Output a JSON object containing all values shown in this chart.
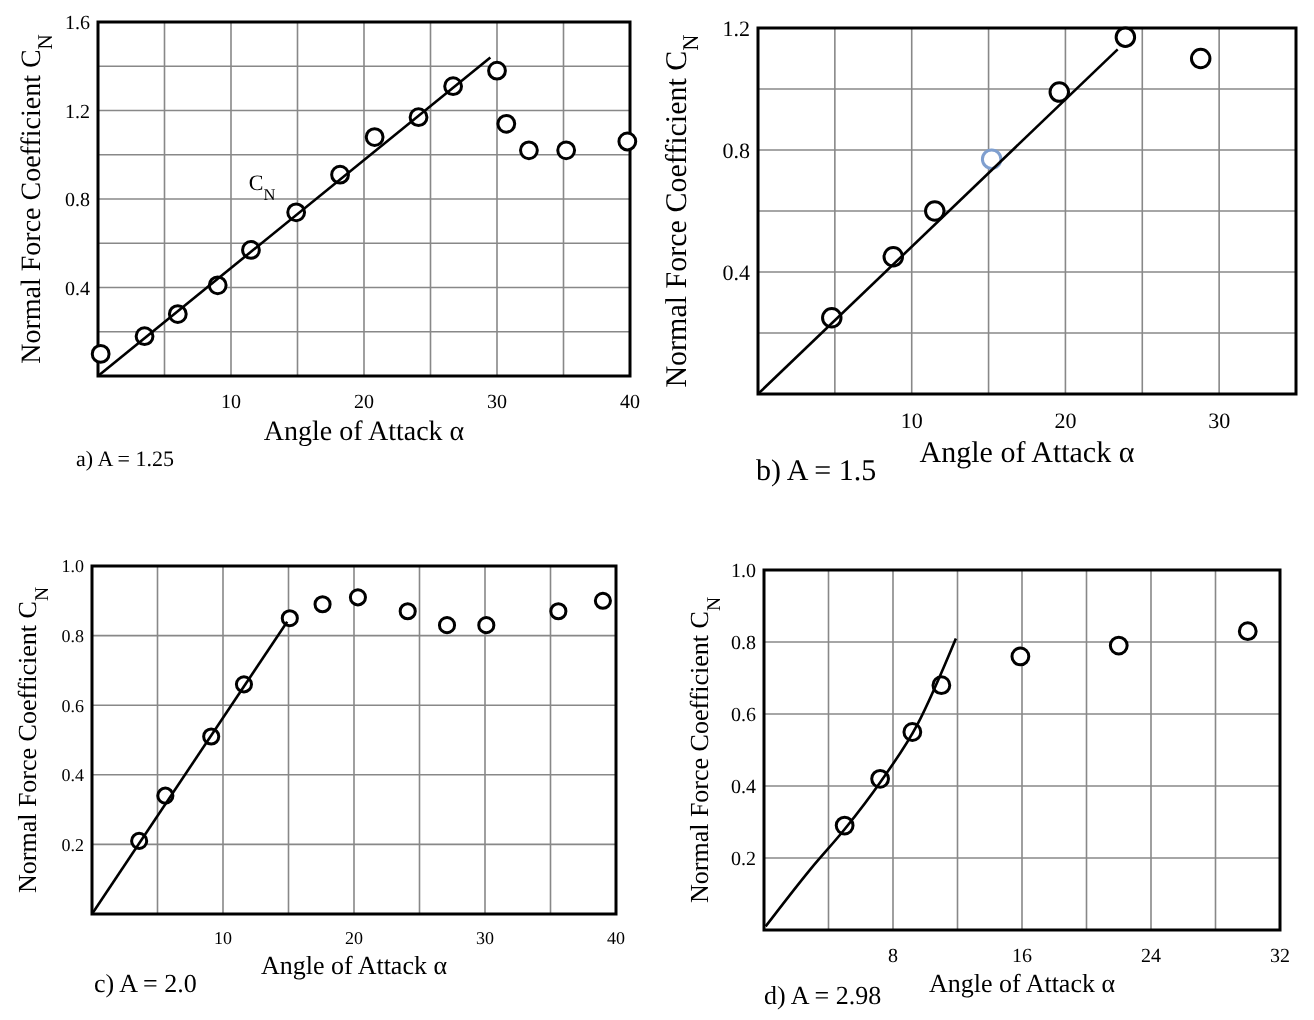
{
  "chart_data": [
    {
      "type": "scatter",
      "title": "a) A = 1.25",
      "xlabel": "Angle of Attack  α",
      "ylabel": "Normal Force Coefficient C$_{N}$",
      "xlim": [
        0,
        40
      ],
      "ylim": [
        0,
        1.6
      ],
      "xticks": [
        {
          "value": 5,
          "label": null
        },
        10,
        {
          "value": 15,
          "label": null
        },
        20,
        {
          "value": 25,
          "label": null
        },
        30,
        {
          "value": 35,
          "label": null
        },
        40
      ],
      "yticks": [
        {
          "value": 0.2,
          "label": null
        },
        0.4,
        {
          "value": 0.6,
          "label": null
        },
        0.8,
        {
          "value": 1,
          "label": null
        },
        1.2,
        {
          "value": 1.4,
          "label": null
        },
        1.6
      ],
      "grid": true,
      "annotations": [
        "C$_{N}$"
      ],
      "series": [
        {
          "marker": "circle",
          "color": "#000000",
          "x": [
            0.2,
            3.5,
            6.0,
            9.0,
            11.5,
            14.9,
            18.2,
            20.8,
            24.1,
            26.7,
            30.0,
            30.7,
            32.4,
            35.2,
            39.8
          ],
          "values": [
            0.1,
            0.18,
            0.28,
            0.41,
            0.57,
            0.74,
            0.91,
            1.08,
            1.17,
            1.31,
            1.38,
            1.14,
            1.02,
            1.02,
            1.06
          ]
        },
        {
          "type": "line",
          "marker": "none",
          "line_style": "solid",
          "color": "#000000",
          "x": [
            0,
            29.5
          ],
          "values": [
            0,
            1.44
          ]
        }
      ]
    },
    {
      "type": "scatter",
      "title": "b) A = 1.5",
      "xlabel": "Angle of Attack  α",
      "ylabel": "Normal Force Coefficient C$_{N}$",
      "xlim": [
        0,
        35
      ],
      "ylim": [
        0,
        1.2
      ],
      "xticks": [
        {
          "value": 5,
          "label": null
        },
        10,
        {
          "value": 15,
          "label": null
        },
        20,
        {
          "value": 25,
          "label": null
        },
        30
      ],
      "yticks": [
        {
          "value": 0.2,
          "label": null
        },
        0.4,
        {
          "value": 0.6,
          "label": null
        },
        0.8,
        {
          "value": 1,
          "label": null
        },
        1.2
      ],
      "grid": true,
      "series": [
        {
          "marker": "circle",
          "colors": [
            "#000000",
            "#000000",
            "#000000",
            "#7f9fcf",
            "#000000",
            "#000000",
            "#000000"
          ],
          "x": [
            4.8,
            8.8,
            11.5,
            15.2,
            19.6,
            23.9,
            28.8
          ],
          "values": [
            0.25,
            0.45,
            0.6,
            0.77,
            0.99,
            1.17,
            1.1
          ]
        },
        {
          "type": "line",
          "marker": "none",
          "line_style": "solid",
          "color": "#000000",
          "x": [
            0,
            23.4
          ],
          "values": [
            0,
            1.13
          ]
        }
      ]
    },
    {
      "type": "scatter",
      "title": "c) A = 2.0",
      "xlabel": "Angle of Attack  α",
      "ylabel": "Normal Force Coefficient C$_{N}$",
      "xlim": [
        0,
        40
      ],
      "ylim": [
        0,
        1.0
      ],
      "xticks": [
        {
          "value": 5,
          "label": null
        },
        10,
        {
          "value": 15,
          "label": null
        },
        20,
        {
          "value": 25,
          "label": null
        },
        30,
        {
          "value": 35,
          "label": null
        },
        40
      ],
      "yticks": [
        0.2,
        0.4,
        0.6,
        0.8,
        {
          "value": 1,
          "label": "1.0"
        }
      ],
      "grid": true,
      "series": [
        {
          "marker": "circle",
          "color": "#000000",
          "x": [
            3.6,
            5.6,
            9.1,
            11.6,
            15.1,
            17.6,
            20.3,
            24.1,
            27.1,
            30.1,
            35.6,
            39.0
          ],
          "values": [
            0.21,
            0.34,
            0.51,
            0.66,
            0.85,
            0.89,
            0.91,
            0.87,
            0.83,
            0.83,
            0.87,
            0.9
          ]
        },
        {
          "type": "line",
          "marker": "none",
          "line_style": "solid",
          "color": "#000000",
          "x": [
            0,
            14.9
          ],
          "values": [
            0,
            0.84
          ]
        }
      ]
    },
    {
      "type": "scatter",
      "title": "d) A = 2.98",
      "xlabel": "Angle of Attack  α",
      "ylabel": "Normal Force Coefficient C$_{N}$",
      "xlim": [
        0,
        32
      ],
      "ylim": [
        0,
        1.0
      ],
      "xticks": [
        {
          "value": 4,
          "label": null
        },
        8,
        {
          "value": 12,
          "label": null
        },
        16,
        {
          "value": 20,
          "label": null
        },
        24,
        {
          "value": 28,
          "label": null
        },
        32
      ],
      "yticks": [
        0.2,
        0.4,
        0.6,
        0.8,
        {
          "value": 1,
          "label": "1.0"
        }
      ],
      "grid": true,
      "series": [
        {
          "marker": "circle",
          "color": "#000000",
          "x": [
            5.0,
            7.2,
            9.2,
            11.0,
            15.9,
            22.0,
            30.0
          ],
          "values": [
            0.29,
            0.42,
            0.55,
            0.68,
            0.76,
            0.79,
            0.83
          ]
        },
        {
          "type": "line",
          "marker": "none",
          "line_style": "solid",
          "color": "#000000",
          "x": [
            0.1,
            2.9,
            5.0,
            7.2,
            9.5,
            11.9
          ],
          "values": [
            0.01,
            0.17,
            0.28,
            0.41,
            0.57,
            0.81
          ]
        }
      ]
    }
  ]
}
